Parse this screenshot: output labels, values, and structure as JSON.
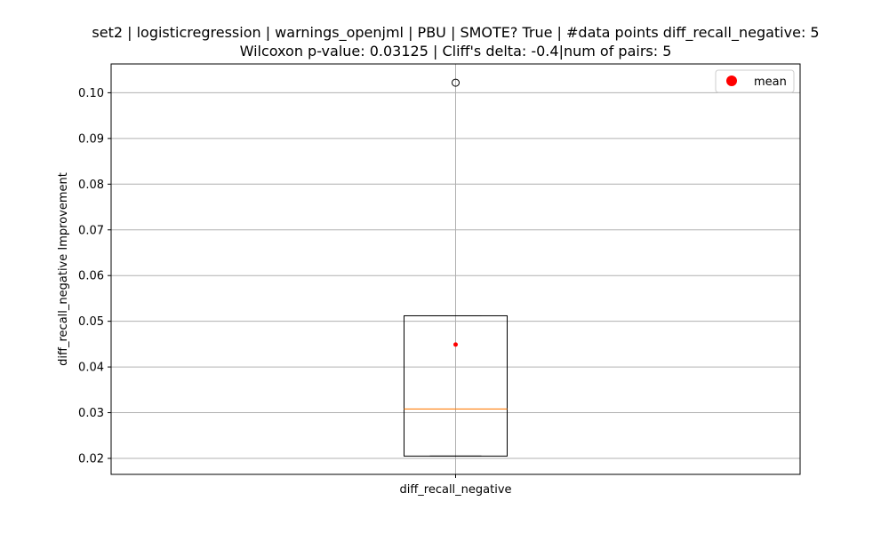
{
  "chart_data": {
    "type": "box",
    "title_lines": [
      "set2 | logisticregression | warnings_openjml | PBU | SMOTE? True | #data points diff_recall_negative: 5",
      "Wilcoxon p-value: 0.03125 | Cliff's delta: -0.4|num of pairs: 5"
    ],
    "xlabel": "",
    "ylabel": "diff_recall_negative Improvement",
    "categories": [
      "diff_recall_negative"
    ],
    "ylim": [
      0.0165,
      0.1063
    ],
    "yticks": [
      0.02,
      0.03,
      0.04,
      0.05,
      0.06,
      0.07,
      0.08,
      0.09,
      0.1
    ],
    "ytick_labels": [
      "0.02",
      "0.03",
      "0.04",
      "0.05",
      "0.06",
      "0.07",
      "0.08",
      "0.09",
      "0.10"
    ],
    "grid": true,
    "legend": {
      "location": "upper right",
      "entries": [
        "mean"
      ]
    },
    "boxes": [
      {
        "label": "diff_recall_negative",
        "whisker_low": 0.0205,
        "q1": 0.0205,
        "median": 0.0308,
        "q3": 0.0512,
        "whisker_high": 0.0512,
        "mean": 0.0449,
        "outliers": [
          0.1022
        ]
      }
    ],
    "colors": {
      "box": "#000000",
      "median": "#ff7f0e",
      "mean": "#ff0000",
      "grid": "#b0b0b0"
    }
  }
}
